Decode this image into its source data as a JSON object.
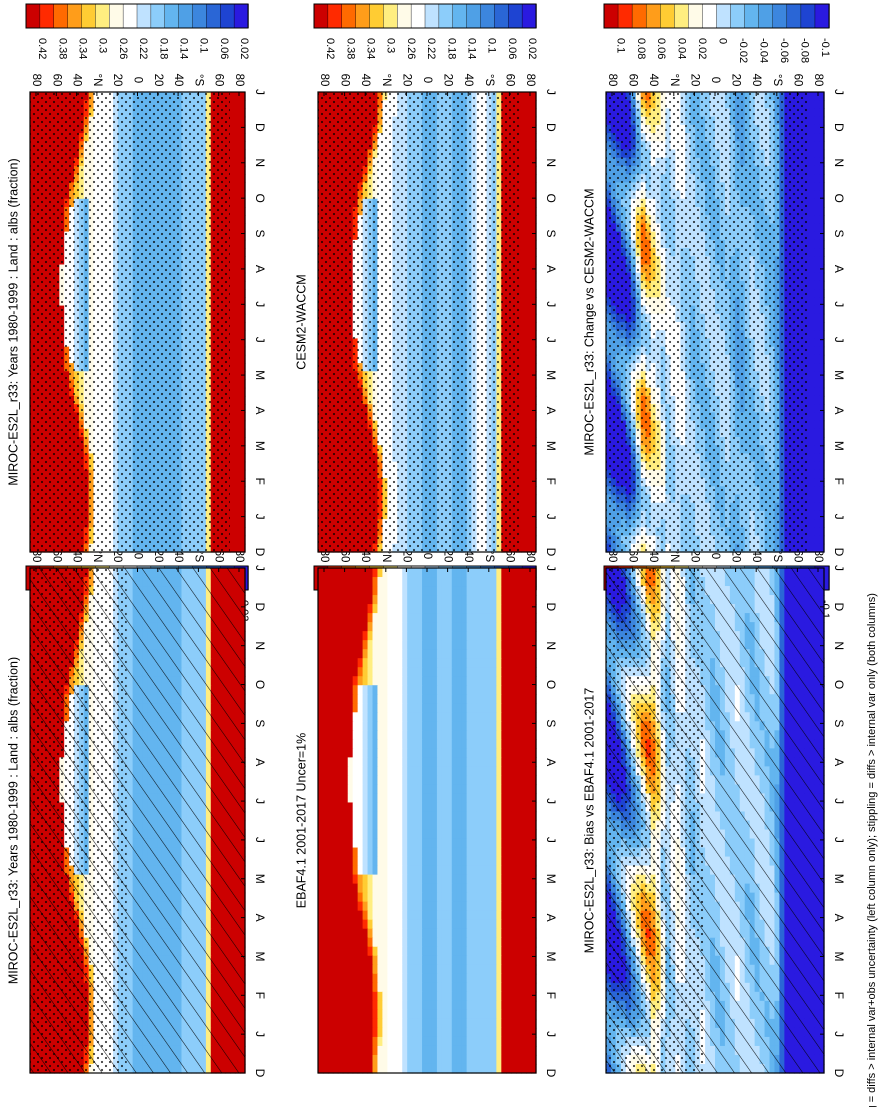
{
  "figure": {
    "footnote": "hatching = diffs > internal var+obs uncertainty (left column only); stippling = diffs > internal var only (both columns)"
  },
  "colorbars": {
    "abs": [
      "0.42",
      "0.38",
      "0.34",
      "0.3",
      "0.26",
      "0.22",
      "0.18",
      "0.14",
      "0.1",
      "0.06",
      "0.02"
    ],
    "diff": [
      "0.1",
      "0.08",
      "0.06",
      "0.04",
      "0.02",
      "0",
      "-0.02",
      "-0.04",
      "-0.06",
      "-0.08",
      "-0.1"
    ]
  },
  "axes": {
    "months": [
      "D",
      "J",
      "F",
      "M",
      "A",
      "M",
      "J",
      "J",
      "A",
      "S",
      "O",
      "N",
      "D",
      "J"
    ],
    "lat_labels": [
      "80",
      "60",
      "40",
      "°N",
      "20",
      "0",
      "20",
      "40",
      "°S",
      "60",
      "80"
    ]
  },
  "colors": {
    "scale": [
      "#cc0000",
      "#ff2a00",
      "#ff6a00",
      "#ff9d1a",
      "#ffcc33",
      "#ffee80",
      "#fffbe8",
      "#ffffff",
      "#bfe2ff",
      "#8ccdfa",
      "#63b5ef",
      "#4fa0e6",
      "#3c86de",
      "#2a66d6",
      "#1e44d2",
      "#2a1ae0"
    ]
  },
  "panels": [
    {
      "id": "p-model-left",
      "title": "MIROC-ES2L_r33: Years 1980-1999 : Land : albs (fraction)",
      "colorbar": "abs",
      "hatching": true,
      "stippling": true
    },
    {
      "id": "p-obs",
      "title": "EBAF4.1 2001-2017 Uncer=1%",
      "colorbar": "abs",
      "hatching": false,
      "stippling": false
    },
    {
      "id": "p-bias",
      "title": "MIROC-ES2L_r33: Bias vs EBAF4.1 2001-2017",
      "colorbar": "diff",
      "hatching": true,
      "stippling": true
    },
    {
      "id": "p-model-right",
      "title": "MIROC-ES2L_r33: Years 1980-1999 : Land : albs (fraction)",
      "colorbar": "abs",
      "hatching": false,
      "stippling": true
    },
    {
      "id": "p-cesm",
      "title": "CESM2-WACCM",
      "colorbar": "abs",
      "hatching": false,
      "stippling": true
    },
    {
      "id": "p-change",
      "title": "MIROC-ES2L_r33: Change vs CESM2-WACCM",
      "colorbar": "diff",
      "hatching": false,
      "stippling": true
    }
  ],
  "chart_data": [
    {
      "type": "heatmap",
      "title": "MIROC-ES2L_r33: Years 1980-1999 : Land : albs (fraction)",
      "xlabel": "month",
      "ylabel": "latitude",
      "x": [
        "D",
        "J",
        "F",
        "M",
        "A",
        "M",
        "J",
        "J",
        "A",
        "S",
        "O",
        "N",
        "D",
        "J"
      ],
      "y_range": [
        -90,
        90
      ],
      "colorbar_ticks": [
        0.42,
        0.38,
        0.34,
        0.3,
        0.26,
        0.22,
        0.18,
        0.14,
        0.1,
        0.06,
        0.02
      ],
      "profile": {
        "lats": [
          90,
          75,
          65,
          55,
          45,
          35,
          20,
          12,
          0,
          -15,
          -30,
          -45,
          -55,
          -58,
          -62,
          -70,
          -80,
          -90
        ],
        "vals": [
          0.44,
          0.44,
          0.44,
          0.34,
          0.27,
          0.24,
          0.22,
          0.18,
          0.15,
          0.16,
          0.15,
          0.18,
          0.17,
          0.22,
          0.44,
          0.44,
          0.44,
          0.44
        ]
      },
      "seasonal_snow": {
        "summer_edge_lat": 64,
        "winter_edge_lat": 36,
        "ice_edge_lat": 68,
        "shape": "cos-month"
      }
    },
    {
      "type": "heatmap",
      "title": "EBAF4.1 2001-2017 Uncer=1%",
      "xlabel": "month",
      "ylabel": "latitude",
      "x": [
        "D",
        "J",
        "F",
        "M",
        "A",
        "M",
        "J",
        "J",
        "A",
        "S",
        "O",
        "N",
        "D",
        "J"
      ],
      "y_range": [
        -90,
        90
      ],
      "colorbar_ticks": [
        0.42,
        0.38,
        0.34,
        0.3,
        0.26,
        0.22,
        0.18,
        0.14,
        0.1,
        0.06,
        0.02
      ],
      "profile": {
        "lats": [
          90,
          75,
          65,
          55,
          45,
          35,
          22,
          12,
          0,
          -15,
          -30,
          -45,
          -55,
          -58,
          -62,
          -70,
          -80,
          -90
        ],
        "vals": [
          0.44,
          0.44,
          0.44,
          0.34,
          0.26,
          0.25,
          0.23,
          0.18,
          0.16,
          0.17,
          0.16,
          0.19,
          0.17,
          0.21,
          0.44,
          0.44,
          0.44,
          0.44
        ]
      },
      "seasonal_snow": {
        "summer_edge_lat": 64,
        "winter_edge_lat": 38,
        "ice_edge_lat": 70,
        "shape": "cos-month"
      }
    },
    {
      "type": "heatmap",
      "title": "MIROC-ES2L_r33: Bias vs EBAF4.1 2001-2017",
      "xlabel": "month",
      "ylabel": "latitude",
      "x": [
        "D",
        "J",
        "F",
        "M",
        "A",
        "M",
        "J",
        "J",
        "A",
        "S",
        "O",
        "N",
        "D",
        "J"
      ],
      "y_range": [
        -90,
        90
      ],
      "colorbar_ticks": [
        0.1,
        0.08,
        0.06,
        0.04,
        0.02,
        0,
        -0.02,
        -0.04,
        -0.06,
        -0.08,
        -0.1
      ],
      "profile": {
        "lats": [
          90,
          80,
          70,
          60,
          50,
          40,
          30,
          20,
          10,
          0,
          -10,
          -20,
          -30,
          -40,
          -50,
          -58,
          -62,
          -90
        ],
        "vals": [
          -0.09,
          -0.07,
          -0.03,
          0.02,
          0.05,
          -0.02,
          0.01,
          -0.02,
          -0.01,
          -0.02,
          -0.015,
          -0.01,
          -0.02,
          -0.015,
          -0.02,
          -0.1,
          -0.11,
          -0.11
        ]
      }
    },
    {
      "type": "heatmap",
      "title": "MIROC-ES2L_r33: Years 1980-1999 : Land : albs (fraction)",
      "xlabel": "month",
      "ylabel": "latitude",
      "x": [
        "D",
        "J",
        "F",
        "M",
        "A",
        "M",
        "J",
        "J",
        "A",
        "S",
        "O",
        "N",
        "D",
        "J"
      ],
      "y_range": [
        -90,
        90
      ],
      "colorbar_ticks": [
        0.42,
        0.38,
        0.34,
        0.3,
        0.26,
        0.22,
        0.18,
        0.14,
        0.1,
        0.06,
        0.02
      ],
      "profile": {
        "lats": [
          90,
          75,
          65,
          55,
          45,
          35,
          20,
          12,
          0,
          -15,
          -30,
          -45,
          -55,
          -58,
          -62,
          -70,
          -80,
          -90
        ],
        "vals": [
          0.44,
          0.44,
          0.44,
          0.34,
          0.27,
          0.24,
          0.22,
          0.18,
          0.15,
          0.16,
          0.15,
          0.18,
          0.17,
          0.22,
          0.44,
          0.44,
          0.44,
          0.44
        ]
      },
      "seasonal_snow": {
        "summer_edge_lat": 64,
        "winter_edge_lat": 36,
        "ice_edge_lat": 68,
        "shape": "cos-month"
      }
    },
    {
      "type": "heatmap",
      "title": "CESM2-WACCM",
      "xlabel": "month",
      "ylabel": "latitude",
      "x": [
        "D",
        "J",
        "F",
        "M",
        "A",
        "M",
        "J",
        "J",
        "A",
        "S",
        "O",
        "N",
        "D",
        "J"
      ],
      "y_range": [
        -90,
        90
      ],
      "colorbar_ticks": [
        0.42,
        0.38,
        0.34,
        0.3,
        0.26,
        0.22,
        0.18,
        0.14,
        0.1,
        0.06,
        0.02
      ],
      "profile": {
        "lats": [
          90,
          75,
          65,
          55,
          45,
          35,
          20,
          12,
          0,
          -15,
          -30,
          -45,
          -55,
          -58,
          -62,
          -70,
          -80,
          -90
        ],
        "vals": [
          0.44,
          0.44,
          0.44,
          0.35,
          0.27,
          0.23,
          0.21,
          0.17,
          0.16,
          0.17,
          0.16,
          0.24,
          0.18,
          0.2,
          0.44,
          0.44,
          0.44,
          0.44
        ]
      },
      "seasonal_snow": {
        "summer_edge_lat": 63,
        "winter_edge_lat": 34,
        "ice_edge_lat": 70,
        "shape": "cos-month"
      }
    },
    {
      "type": "heatmap",
      "title": "MIROC-ES2L_r33: Change vs CESM2-WACCM",
      "xlabel": "month",
      "ylabel": "latitude",
      "x": [
        "D",
        "J",
        "F",
        "M",
        "A",
        "M",
        "J",
        "J",
        "A",
        "S",
        "O",
        "N",
        "D",
        "J"
      ],
      "y_range": [
        -90,
        90
      ],
      "colorbar_ticks": [
        0.1,
        0.08,
        0.06,
        0.04,
        0.02,
        0,
        -0.02,
        -0.04,
        -0.06,
        -0.08,
        -0.1
      ],
      "profile": {
        "lats": [
          90,
          80,
          70,
          60,
          50,
          40,
          30,
          20,
          10,
          0,
          -10,
          -20,
          -30,
          -40,
          -50,
          -58,
          -62,
          -90
        ],
        "vals": [
          -0.1,
          -0.09,
          -0.06,
          0.03,
          0.02,
          -0.01,
          0.0,
          -0.02,
          -0.02,
          -0.02,
          -0.015,
          -0.04,
          -0.02,
          -0.02,
          -0.03,
          -0.1,
          -0.11,
          -0.11
        ]
      }
    }
  ]
}
